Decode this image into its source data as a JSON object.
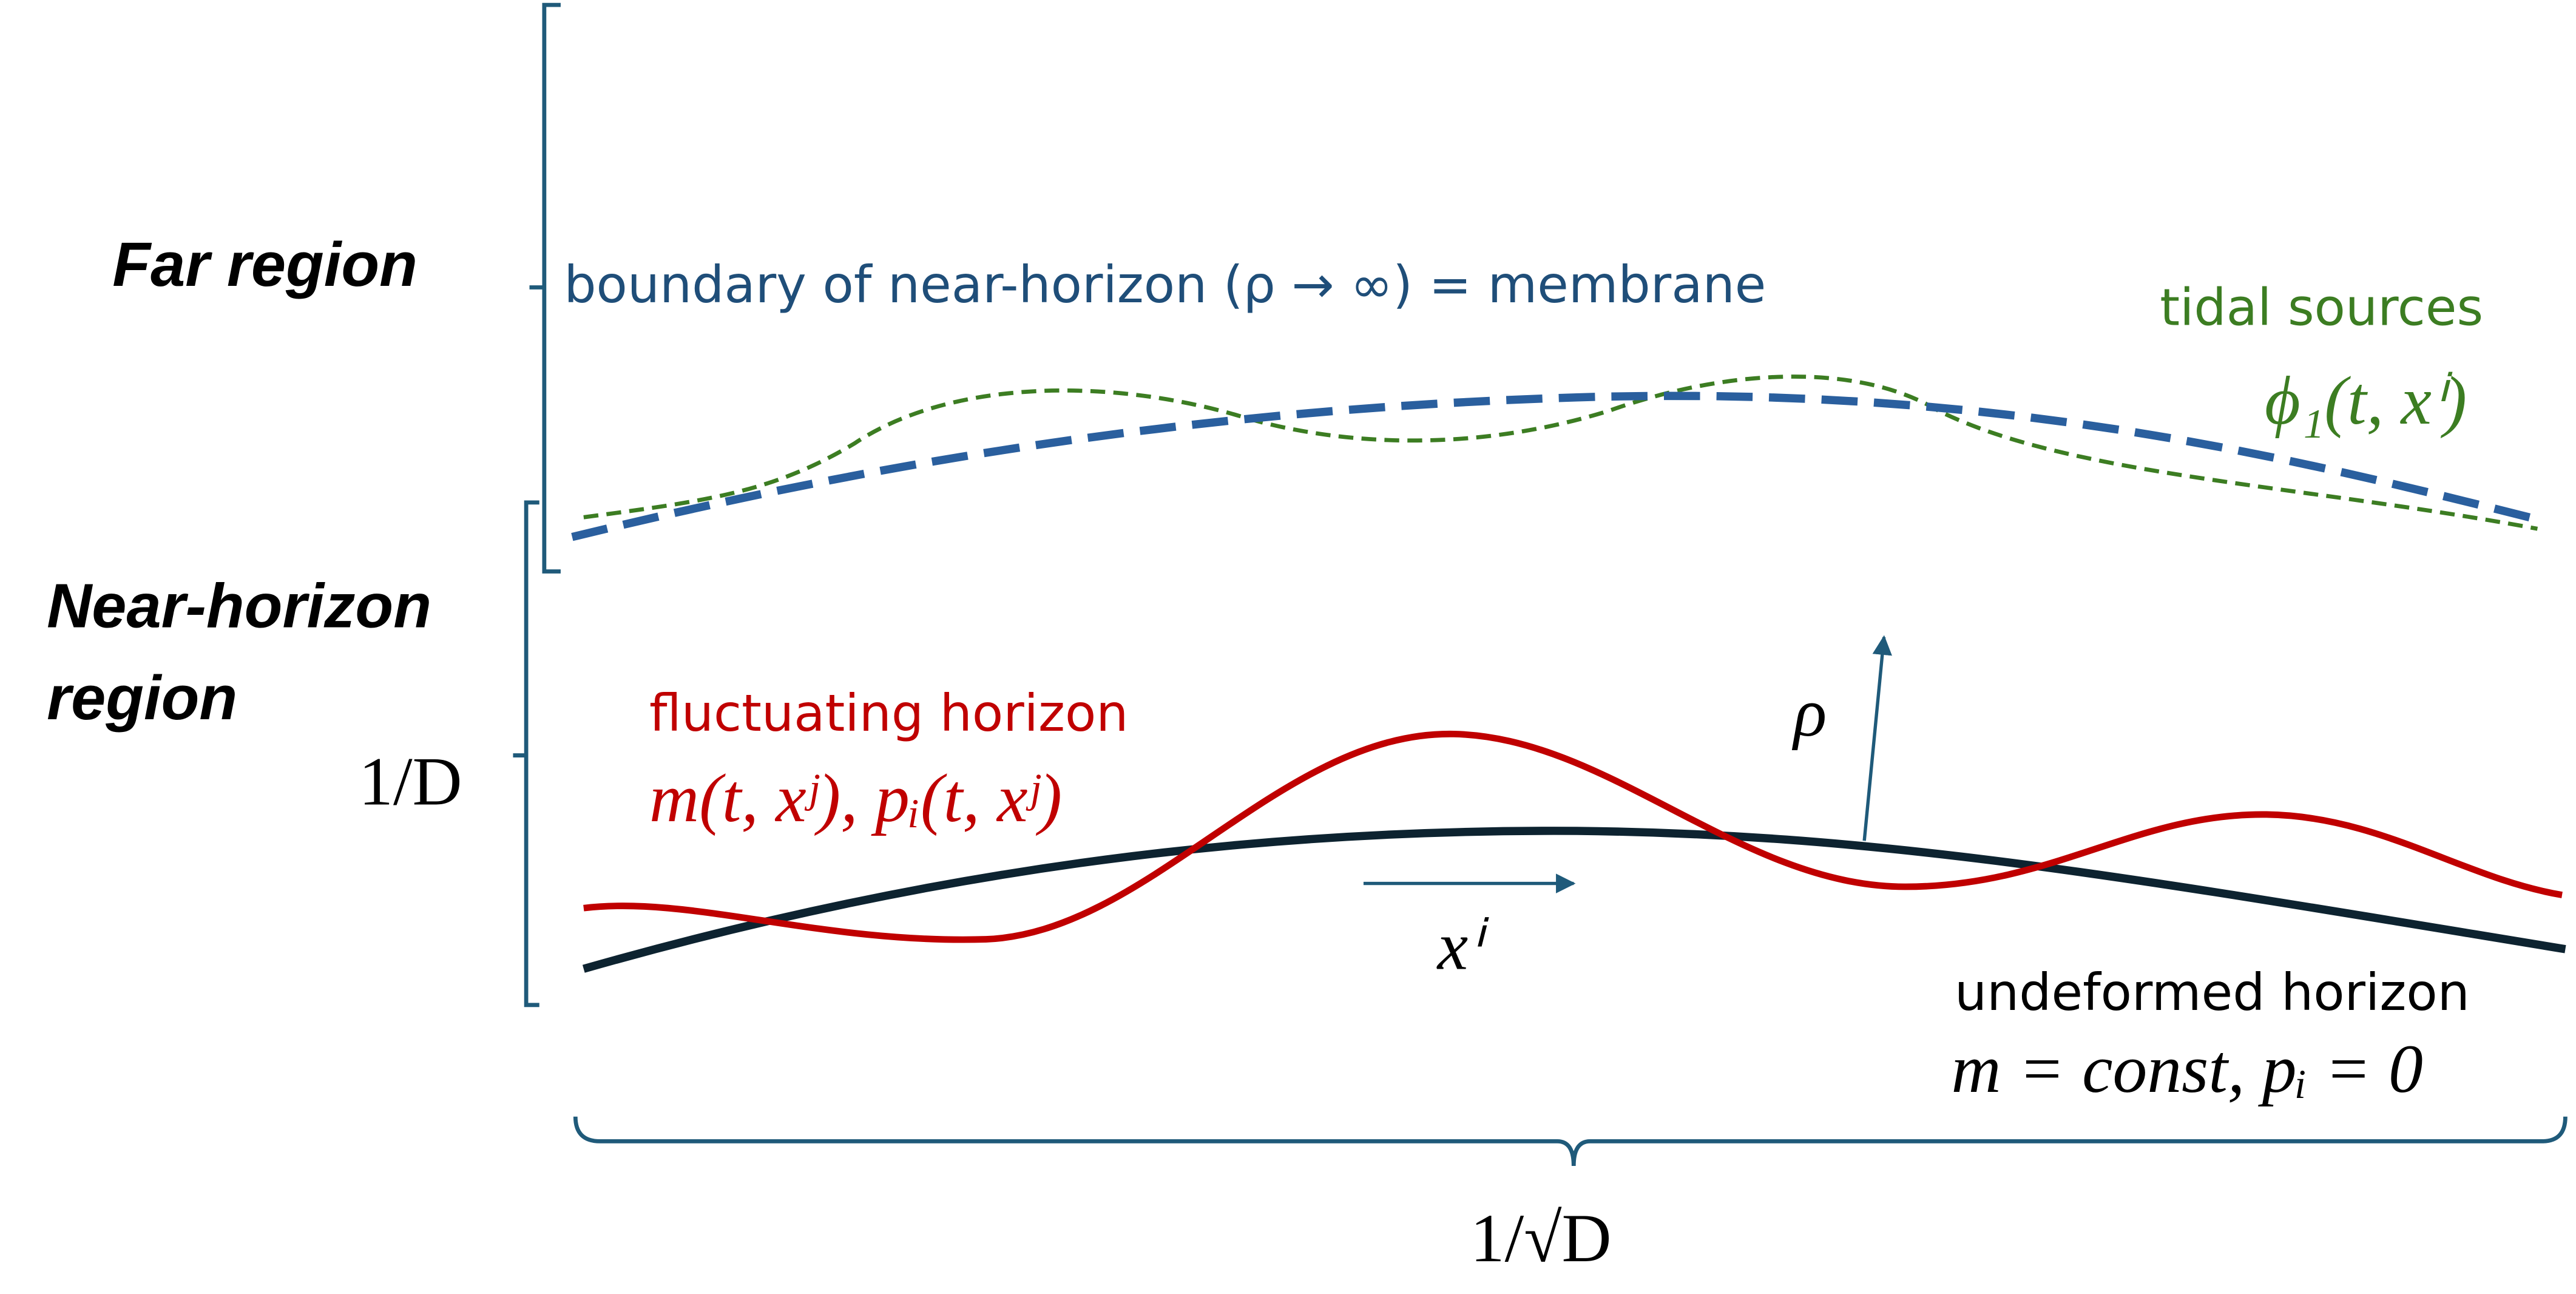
{
  "regions": {
    "far": "Far region",
    "near_horizon": [
      "Near-horizon",
      "region"
    ]
  },
  "labels": {
    "membrane": "boundary of near-horizon (ρ → ∞) = membrane",
    "tidal_sources": [
      "tidal sources",
      "ϕ₁(t, xⁱ)"
    ],
    "fluctuating_horizon": [
      "fluctuating horizon",
      "m(t, xʲ), pᵢ(t, xʲ)"
    ],
    "undeformed_horizon": [
      "undeformed horizon",
      "m = const, pᵢ = 0"
    ],
    "rho": "ρ",
    "x_i": "xⁱ"
  },
  "scales": {
    "radial": "1/D",
    "transverse": "1/√D"
  }
}
